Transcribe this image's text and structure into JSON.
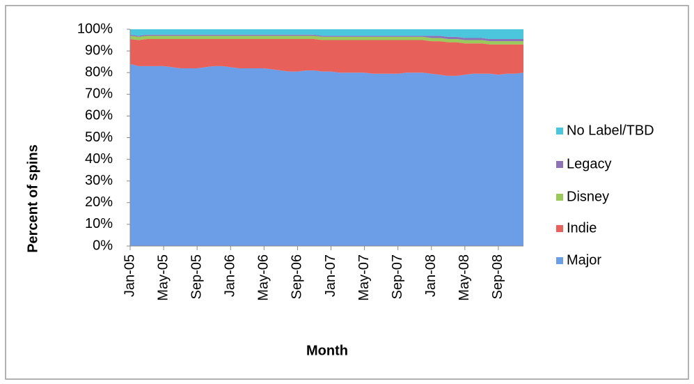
{
  "chart_data": {
    "type": "stacked_area",
    "x_label": "Month",
    "y_label": "Percent of spins",
    "categories": [
      "Jan-05",
      null,
      null,
      null,
      "May-05",
      null,
      null,
      null,
      "Sep-05",
      null,
      null,
      null,
      "Jan-06",
      null,
      null,
      null,
      "May-06",
      null,
      null,
      null,
      "Sep-06",
      null,
      null,
      null,
      "Jan-07",
      null,
      null,
      null,
      "May-07",
      null,
      null,
      null,
      "Sep-07",
      null,
      null,
      null,
      "Jan-08",
      null,
      null,
      null,
      "May-08",
      null,
      null,
      null,
      "Sep-08",
      null,
      null,
      null
    ],
    "ylim": [
      0,
      100
    ],
    "yticks": [
      {
        "value": 0,
        "label": "0%"
      },
      {
        "value": 10,
        "label": "10%"
      },
      {
        "value": 20,
        "label": "20%"
      },
      {
        "value": 30,
        "label": "30%"
      },
      {
        "value": 40,
        "label": "40%"
      },
      {
        "value": 50,
        "label": "50%"
      },
      {
        "value": 60,
        "label": "60%"
      },
      {
        "value": 70,
        "label": "70%"
      },
      {
        "value": 80,
        "label": "80%"
      },
      {
        "value": 90,
        "label": "90%"
      },
      {
        "value": 100,
        "label": "100%"
      }
    ],
    "series": [
      {
        "name": "Major",
        "color": "#6b9ee6",
        "values": [
          84,
          83,
          83,
          83,
          83,
          82.5,
          82,
          82,
          82,
          82.5,
          83,
          83,
          82.5,
          82,
          82,
          82,
          82,
          81.5,
          81,
          80.5,
          80.5,
          81,
          81,
          80.5,
          80.5,
          80,
          80,
          80,
          80,
          79.5,
          79.5,
          79.5,
          79.5,
          80,
          80,
          80,
          79.5,
          79,
          78.5,
          78.5,
          79,
          79.5,
          79.5,
          79.5,
          79,
          79.5,
          79.5,
          80
        ]
      },
      {
        "name": "Indie",
        "color": "#e8605a",
        "values": [
          11.5,
          12,
          12.5,
          12.5,
          12.5,
          13,
          13.5,
          13.5,
          13.5,
          13,
          12.5,
          12.5,
          13,
          13.5,
          13.5,
          13.5,
          13.5,
          14,
          14.5,
          15,
          15,
          14.5,
          14.5,
          14.5,
          14.5,
          15,
          15,
          15,
          15,
          15.5,
          15.5,
          15.5,
          15.5,
          15,
          15,
          15,
          15,
          15.5,
          15.5,
          15.5,
          14.5,
          14,
          14,
          13.5,
          14,
          13.5,
          13.5,
          13
        ]
      },
      {
        "name": "Disney",
        "color": "#9bc95a",
        "values": [
          1.5,
          1.5,
          1.5,
          1.5,
          1.5,
          1.5,
          1.5,
          1.5,
          1.5,
          1.5,
          1.5,
          1.5,
          1.5,
          1.5,
          1.5,
          1.5,
          1.5,
          1.5,
          1.5,
          1.5,
          1.5,
          1.5,
          1.5,
          1.5,
          1.5,
          1.5,
          1.5,
          1.5,
          1.5,
          1.5,
          1.5,
          1.5,
          1.5,
          1.5,
          1.5,
          1.5,
          1.5,
          1.5,
          1.5,
          1.5,
          1.5,
          1.5,
          1.5,
          1.5,
          1.5,
          1.5,
          1.5,
          1.5
        ]
      },
      {
        "name": "Legacy",
        "color": "#8e72b8",
        "values": [
          0.5,
          0.5,
          0.5,
          0.5,
          0.5,
          0.5,
          0.5,
          0.5,
          0.5,
          0.5,
          0.5,
          0.5,
          0.5,
          0.5,
          0.5,
          0.5,
          0.5,
          0.5,
          0.5,
          0.5,
          0.5,
          0.5,
          0.5,
          0.5,
          0.5,
          0.5,
          0.5,
          0.5,
          0.5,
          0.5,
          0.5,
          0.5,
          0.5,
          0.5,
          0.5,
          0.5,
          1,
          1,
          1,
          1,
          1,
          1,
          1,
          1,
          1,
          1,
          1,
          1
        ]
      },
      {
        "name": "No Label/TBD",
        "color": "#4bc6dc",
        "values": [
          2.5,
          3,
          3,
          3,
          3,
          3,
          3,
          3,
          3,
          3,
          3,
          3,
          3,
          3,
          3,
          3,
          3,
          3,
          3,
          3,
          3,
          3,
          3,
          3,
          3.5,
          3.5,
          3.5,
          3.5,
          3.5,
          3.5,
          3.5,
          3.5,
          3.5,
          3.5,
          3.5,
          3.5,
          3.5,
          3.5,
          3.5,
          3.5,
          4.5,
          5,
          5,
          5.5,
          5.5,
          5.5,
          5.5,
          5.5
        ]
      }
    ]
  }
}
